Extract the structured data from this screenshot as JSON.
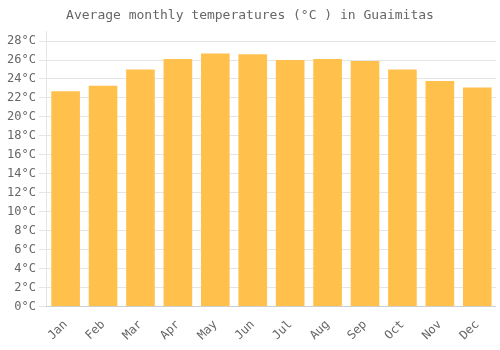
{
  "chart_data": {
    "type": "bar",
    "title": "Average monthly temperatures (°C ) in Guaimitas",
    "categories": [
      "Jan",
      "Feb",
      "Mar",
      "Apr",
      "May",
      "Jun",
      "Jul",
      "Aug",
      "Sep",
      "Oct",
      "Nov",
      "Dec"
    ],
    "values": [
      22.7,
      23.3,
      25.0,
      26.1,
      26.7,
      26.6,
      26.0,
      26.1,
      25.9,
      25.0,
      23.8,
      23.1
    ],
    "color": "#FFC04C",
    "ylim": [
      0,
      29
    ],
    "yticks": [
      {
        "value": 0,
        "label": "0°C"
      },
      {
        "value": 2,
        "label": "2°C"
      },
      {
        "value": 4,
        "label": "4°C"
      },
      {
        "value": 6,
        "label": "6°C"
      },
      {
        "value": 8,
        "label": "8°C"
      },
      {
        "value": 10,
        "label": "10°C"
      },
      {
        "value": 12,
        "label": "12°C"
      },
      {
        "value": 14,
        "label": "14°C"
      },
      {
        "value": 16,
        "label": "16°C"
      },
      {
        "value": 18,
        "label": "18°C"
      },
      {
        "value": 20,
        "label": "20°C"
      },
      {
        "value": 22,
        "label": "22°C"
      },
      {
        "value": 24,
        "label": "24°C"
      },
      {
        "value": 26,
        "label": "26°C"
      },
      {
        "value": 28,
        "label": "28°C"
      }
    ],
    "grid": true
  }
}
